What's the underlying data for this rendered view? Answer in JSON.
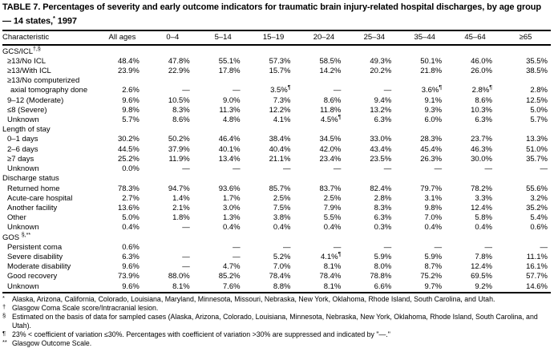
{
  "table": {
    "title": {
      "pre": "TABLE 7. Percentages of severity and early outcome indicators for traumatic brain injury-related hospital discharges, by age group — 14 states,",
      "sup": "*",
      "post": " 1997"
    },
    "columns": [
      "Characteristic",
      "All ages",
      "0–4",
      "5–14",
      "15–19",
      "20–24",
      "25–34",
      "35–44",
      "45–64",
      "≥65"
    ],
    "sections": [
      {
        "label": "GCS/ICL",
        "sup": "†,§",
        "rows": [
          {
            "label": "≥13/No ICL",
            "values": [
              "48.4%",
              "47.8%",
              "55.1%",
              "57.3%",
              "58.5%",
              "49.3%",
              "50.1%",
              "46.0%",
              "35.5%"
            ]
          },
          {
            "label": "≥13/With ICL",
            "values": [
              "23.9%",
              "22.9%",
              "17.8%",
              "15.7%",
              "14.2%",
              "20.2%",
              "21.8%",
              "26.0%",
              "38.5%"
            ]
          },
          {
            "label": "≥13/No computerized axial tomography done",
            "values": [
              "2.6%",
              "—",
              "—",
              "3.5%¶",
              "—",
              "—",
              "3.6%¶",
              "2.8%¶",
              "2.8%"
            ]
          },
          {
            "label": "9–12 (Moderate)",
            "values": [
              "9.6%",
              "10.5%",
              "9.0%",
              "7.3%",
              "8.6%",
              "9.4%",
              "9.1%",
              "8.6%",
              "12.5%"
            ]
          },
          {
            "label": "≤8 (Severe)",
            "values": [
              "9.8%",
              "8.3%",
              "11.3%",
              "12.2%",
              "11.8%",
              "13.2%",
              "9.3%",
              "10.3%",
              "5.0%"
            ]
          },
          {
            "label": "Unknown",
            "values": [
              "5.7%",
              "8.6%",
              "4.8%",
              "4.1%",
              "4.5%¶",
              "6.3%",
              "6.0%",
              "6.3%",
              "5.7%"
            ]
          }
        ]
      },
      {
        "label": "Length of stay",
        "sup": "",
        "rows": [
          {
            "label": "0–1 days",
            "values": [
              "30.2%",
              "50.2%",
              "46.4%",
              "38.4%",
              "34.5%",
              "33.0%",
              "28.3%",
              "23.7%",
              "13.3%"
            ]
          },
          {
            "label": "2–6 days",
            "values": [
              "44.5%",
              "37.9%",
              "40.1%",
              "40.4%",
              "42.0%",
              "43.4%",
              "45.4%",
              "46.3%",
              "51.0%"
            ]
          },
          {
            "label": "≥7 days",
            "values": [
              "25.2%",
              "11.9%",
              "13.4%",
              "21.1%",
              "23.4%",
              "23.5%",
              "26.3%",
              "30.0%",
              "35.7%"
            ]
          },
          {
            "label": "Unknown",
            "values": [
              "0.0%",
              "—",
              "—",
              "—",
              "—",
              "—",
              "—",
              "—",
              "—"
            ]
          }
        ]
      },
      {
        "label": "Discharge status",
        "sup": "",
        "rows": [
          {
            "label": "Returned home",
            "values": [
              "78.3%",
              "94.7%",
              "93.6%",
              "85.7%",
              "83.7%",
              "82.4%",
              "79.7%",
              "78.2%",
              "55.6%"
            ]
          },
          {
            "label": "Acute-care hospital",
            "values": [
              "2.7%",
              "1.4%",
              "1.7%",
              "2.5%",
              "2.5%",
              "2.8%",
              "3.1%",
              "3.3%",
              "3.2%"
            ]
          },
          {
            "label": "Another facility",
            "values": [
              "13.6%",
              "2.1%",
              "3.0%",
              "7.5%",
              "7.9%",
              "8.3%",
              "9.8%",
              "12.4%",
              "35.2%"
            ]
          },
          {
            "label": "Other",
            "values": [
              "5.0%",
              "1.8%",
              "1.3%",
              "3.8%",
              "5.5%",
              "6.3%",
              "7.0%",
              "5.8%",
              "5.4%"
            ]
          },
          {
            "label": "Unknown",
            "values": [
              "0.4%",
              "—",
              "0.4%",
              "0.4%",
              "0.4%",
              "0.3%",
              "0.4%",
              "0.4%",
              "0.6%"
            ]
          }
        ]
      },
      {
        "label": "GOS ",
        "sup": "§,**",
        "rows": [
          {
            "label": "Persistent coma",
            "values": [
              "0.6%",
              "",
              "—",
              "—",
              "—",
              "—",
              "—",
              "—",
              "—"
            ]
          },
          {
            "label": "Severe disability",
            "values": [
              "6.3%",
              "—",
              "—",
              "5.2%",
              "4.1%¶",
              "5.9%",
              "5.9%",
              "7.8%",
              "11.1%"
            ]
          },
          {
            "label": "Moderate disability",
            "values": [
              "9.6%",
              "—",
              "4.7%",
              "7.0%",
              "8.1%",
              "8.0%",
              "8.7%",
              "12.4%",
              "16.1%"
            ]
          },
          {
            "label": "Good recovery",
            "values": [
              "73.9%",
              "88.0%",
              "85.2%",
              "78.4%",
              "78.4%",
              "78.8%",
              "75.2%",
              "69.5%",
              "57.7%"
            ]
          },
          {
            "label": "Unknown",
            "values": [
              "9.6%",
              "8.1%",
              "7.6%",
              "8.8%",
              "8.1%",
              "6.6%",
              "9.7%",
              "9.2%",
              "14.6%"
            ]
          }
        ]
      }
    ],
    "footnotes": [
      {
        "marker": "*",
        "text": "Alaska, Arizona, California, Colorado, Louisiana, Maryland, Minnesota, Missouri, Nebraska, New York, Oklahoma, Rhode Island, South Carolina, and Utah."
      },
      {
        "marker": "†",
        "text": "Glasgow Coma Scale score/Intracranial lesion."
      },
      {
        "marker": "§",
        "text": "Estimated on the basis of data for sampled cases (Alaska, Arizona, Colorado, Louisiana, Minnesota, Nebraska, New York, Oklahoma, Rhode Island, South Carolina, and Utah)."
      },
      {
        "marker": "¶",
        "text": "23% < coefficient of variation ≤30%.  Percentages with coefficient of variation >30% are suppressed and indicated by \"—.\""
      },
      {
        "marker": "**",
        "text": "Glasgow Outcome Scale."
      }
    ]
  }
}
